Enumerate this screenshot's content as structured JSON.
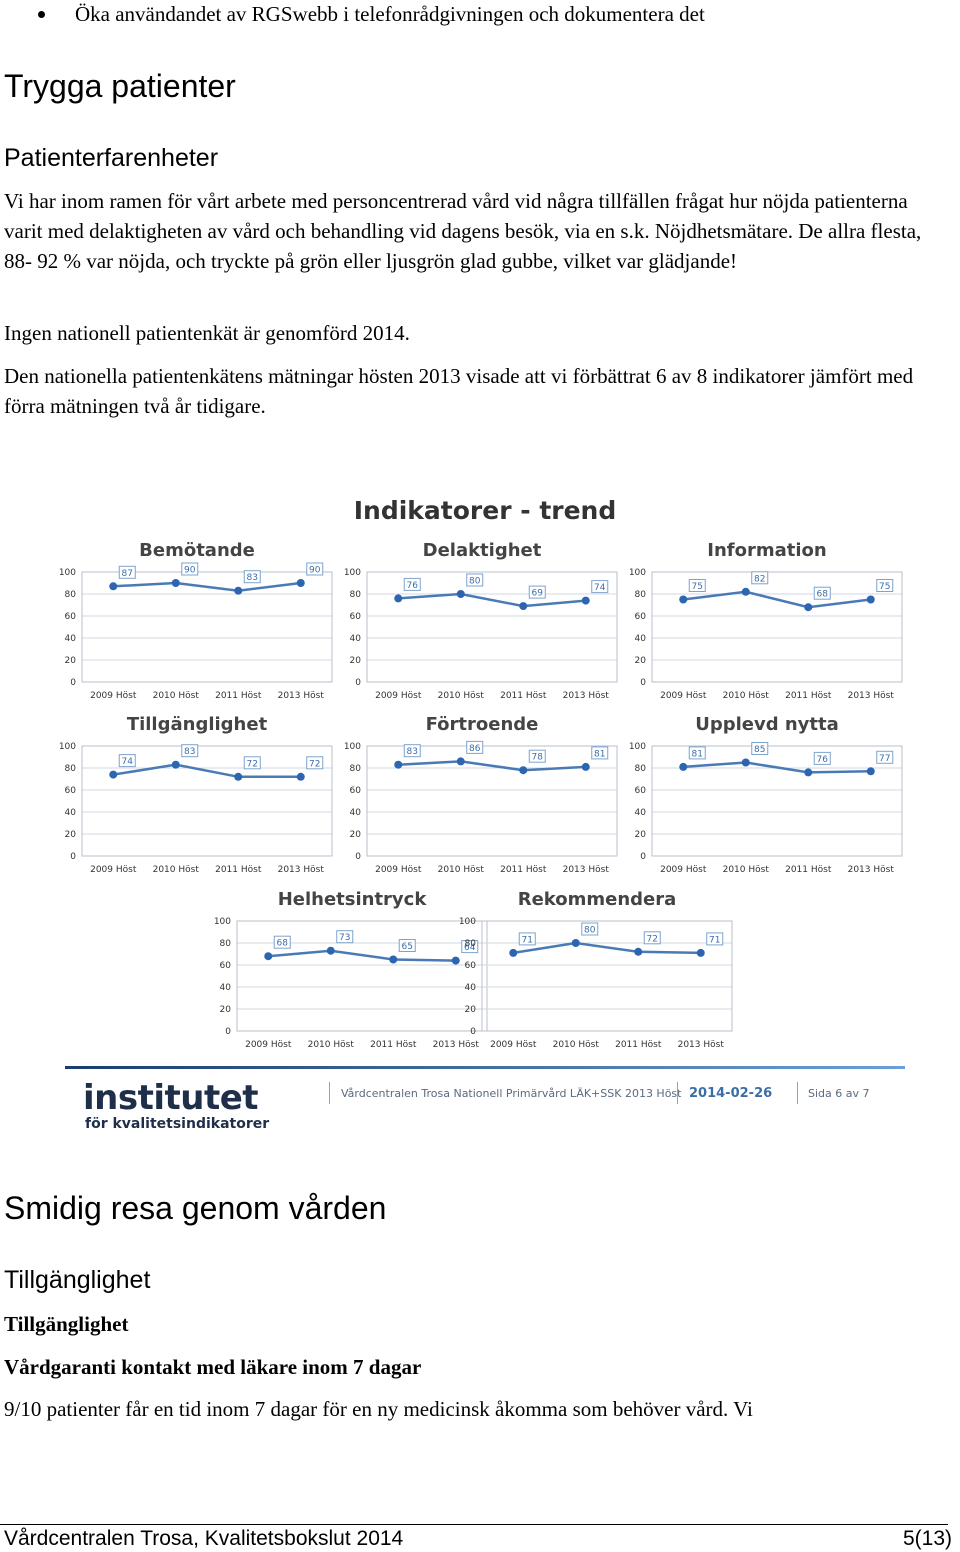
{
  "bullet": "Öka användandet av RGSwebb i telefonrådgivningen och dokumentera det",
  "section1": {
    "heading": "Trygga patienter",
    "subheading": "Patienterfarenheter",
    "para1": "Vi har inom ramen för vårt arbete med personcentrerad vård vid några tillfällen frågat hur nöjda patienterna varit med delaktigheten av vård och behandling vid dagens besök, via en s.k. Nöjdhetsmätare. De allra flesta, 88- 92 % var nöjda, och tryckte på grön eller ljusgrön glad gubbe, vilket var glädjande!",
    "para2": "Ingen nationell patientenkät är genomförd 2014.",
    "para3": "Den nationella patientenkätens mätningar hösten 2013 visade att vi förbättrat 6 av 8 indikatorer jämfört med förra mätningen två år tidigare."
  },
  "figure": {
    "title": "Indikatorer - trend",
    "footer_logo_main": "institutet",
    "footer_logo_sub": "för kvalitetsindikatorer",
    "footer_desc": "Vårdcentralen Trosa Nationell Primärvård LÄK+SSK 2013 Höst",
    "footer_date": "2014-02-26",
    "footer_page": "Sida 6 av 7",
    "line_color": "#4a7ab5",
    "marker_color": "#2d66b0"
  },
  "chart_data": [
    {
      "type": "line",
      "title": "Bemötande",
      "categories": [
        "2009 Höst",
        "2010 Höst",
        "2011 Höst",
        "2013 Höst"
      ],
      "values": [
        87,
        90,
        83,
        90
      ],
      "ylim": [
        0,
        100
      ],
      "yticks": [
        "0",
        "20",
        "40",
        "60",
        "80",
        "100"
      ],
      "grid": true
    },
    {
      "type": "line",
      "title": "Delaktighet",
      "categories": [
        "2009 Höst",
        "2010 Höst",
        "2011 Höst",
        "2013 Höst"
      ],
      "values": [
        76,
        80,
        69,
        74
      ],
      "ylim": [
        0,
        100
      ],
      "yticks": [
        "0",
        "20",
        "40",
        "60",
        "80",
        "100"
      ],
      "grid": true
    },
    {
      "type": "line",
      "title": "Information",
      "categories": [
        "2009 Höst",
        "2010 Höst",
        "2011 Höst",
        "2013 Höst"
      ],
      "values": [
        75,
        82,
        68,
        75
      ],
      "ylim": [
        0,
        100
      ],
      "yticks": [
        "0",
        "20",
        "40",
        "60",
        "80",
        "100"
      ],
      "grid": true
    },
    {
      "type": "line",
      "title": "Tillgänglighet",
      "categories": [
        "2009 Höst",
        "2010 Höst",
        "2011 Höst",
        "2013 Höst"
      ],
      "values": [
        74,
        83,
        72,
        72
      ],
      "ylim": [
        0,
        100
      ],
      "yticks": [
        "0",
        "20",
        "40",
        "60",
        "80",
        "100"
      ],
      "grid": true
    },
    {
      "type": "line",
      "title": "Förtroende",
      "categories": [
        "2009 Höst",
        "2010 Höst",
        "2011 Höst",
        "2013 Höst"
      ],
      "values": [
        83,
        86,
        78,
        81
      ],
      "ylim": [
        0,
        100
      ],
      "yticks": [
        "0",
        "20",
        "40",
        "60",
        "80",
        "100"
      ],
      "grid": true
    },
    {
      "type": "line",
      "title": "Upplevd nytta",
      "categories": [
        "2009 Höst",
        "2010 Höst",
        "2011 Höst",
        "2013 Höst"
      ],
      "values": [
        81,
        85,
        76,
        77
      ],
      "ylim": [
        0,
        100
      ],
      "yticks": [
        "0",
        "20",
        "40",
        "60",
        "80",
        "100"
      ],
      "grid": true
    },
    {
      "type": "line",
      "title": "Helhetsintryck",
      "categories": [
        "2009 Höst",
        "2010 Höst",
        "2011 Höst",
        "2013 Höst"
      ],
      "values": [
        68,
        73,
        65,
        64
      ],
      "ylim": [
        0,
        100
      ],
      "yticks": [
        "0",
        "20",
        "40",
        "60",
        "80",
        "100"
      ],
      "grid": true
    },
    {
      "type": "line",
      "title": "Rekommendera",
      "categories": [
        "2009 Höst",
        "2010 Höst",
        "2011 Höst",
        "2013 Höst"
      ],
      "values": [
        71,
        80,
        72,
        71
      ],
      "ylim": [
        0,
        100
      ],
      "yticks": [
        "0",
        "20",
        "40",
        "60",
        "80",
        "100"
      ],
      "grid": true
    }
  ],
  "section2": {
    "heading": "Smidig resa genom vården",
    "subheading": "Tillgänglighet",
    "bold1": "Tillgänglighet",
    "bold2": "Vårdgaranti kontakt med läkare inom 7 dagar",
    "para": "9/10 patienter får en tid inom 7 dagar för en ny medicinsk åkomma som behöver vård. Vi"
  },
  "page_footer": {
    "left": "Vårdcentralen Trosa, Kvalitetsbokslut 2014",
    "right": "5(13)"
  }
}
